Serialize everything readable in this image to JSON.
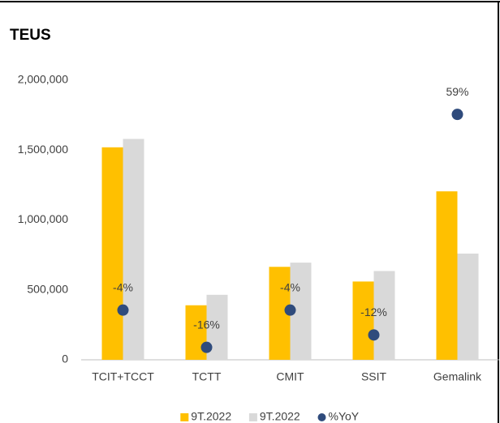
{
  "chart_data": {
    "type": "bar",
    "title": "TEUS",
    "categories": [
      "TCIT+TCCT",
      "TCTT",
      "CMIT",
      "SSIT",
      "Gemalink"
    ],
    "series": [
      {
        "name": "9T.2022",
        "color": "#ffc000",
        "values": [
          1520000,
          390000,
          665000,
          560000,
          1205000
        ]
      },
      {
        "name": "9T.2022",
        "color": "#d9d9d9",
        "values": [
          1580000,
          465000,
          695000,
          635000,
          760000
        ]
      },
      {
        "name": "%YoY",
        "color": "#2f4b7c",
        "type": "scatter",
        "axis": "y2",
        "values": [
          -4,
          -16,
          -4,
          -12,
          59
        ],
        "value_labels": [
          "-4%",
          "-16%",
          "-4%",
          "-12%",
          "59%"
        ]
      }
    ],
    "ylim": [
      0,
      2000000
    ],
    "yticks": [
      0,
      {
        "value": 500000,
        "label": "500,000"
      },
      {
        "value": 1000000,
        "label": "1,000,000"
      },
      {
        "value": 1500000,
        "label": "1,500,000"
      },
      {
        "value": 2000000,
        "label": "2,000,000"
      }
    ],
    "y2lim": [
      -20,
      70
    ],
    "legend": "bottom"
  }
}
